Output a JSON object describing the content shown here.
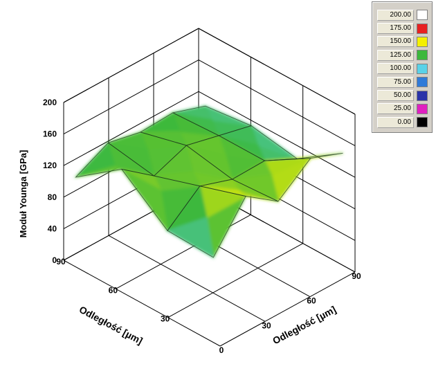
{
  "chart_data": {
    "type": "surface3d",
    "ylabel": "Moduł Younga [GPa]",
    "x1label": "Odległość [µm]",
    "x2label": "Odległość [µm]",
    "zticks": [
      "0",
      "40",
      "80",
      "120",
      "160",
      "200"
    ],
    "x1ticks": [
      "30",
      "60",
      "90"
    ],
    "x2ticks": [
      "0",
      "30",
      "60",
      "90"
    ],
    "grid": [
      [
        104,
        159,
        130,
        162,
        146
      ],
      [
        106,
        140,
        126,
        127,
        107
      ],
      [
        152,
        121,
        137,
        127,
        117
      ],
      [
        110,
        131,
        122,
        124,
        110
      ]
    ],
    "legend": [
      {
        "label": "200.00",
        "color": "#ffffff"
      },
      {
        "label": "175.00",
        "color": "#e82020"
      },
      {
        "label": "150.00",
        "color": "#f4f000"
      },
      {
        "label": "125.00",
        "color": "#3cb83c"
      },
      {
        "label": "100.00",
        "color": "#5ad2e8"
      },
      {
        "label": "75.00",
        "color": "#2f7ad8"
      },
      {
        "label": "50.00",
        "color": "#2a33a8"
      },
      {
        "label": "25.00",
        "color": "#e020c0"
      },
      {
        "label": "0.00",
        "color": "#000000"
      }
    ]
  }
}
